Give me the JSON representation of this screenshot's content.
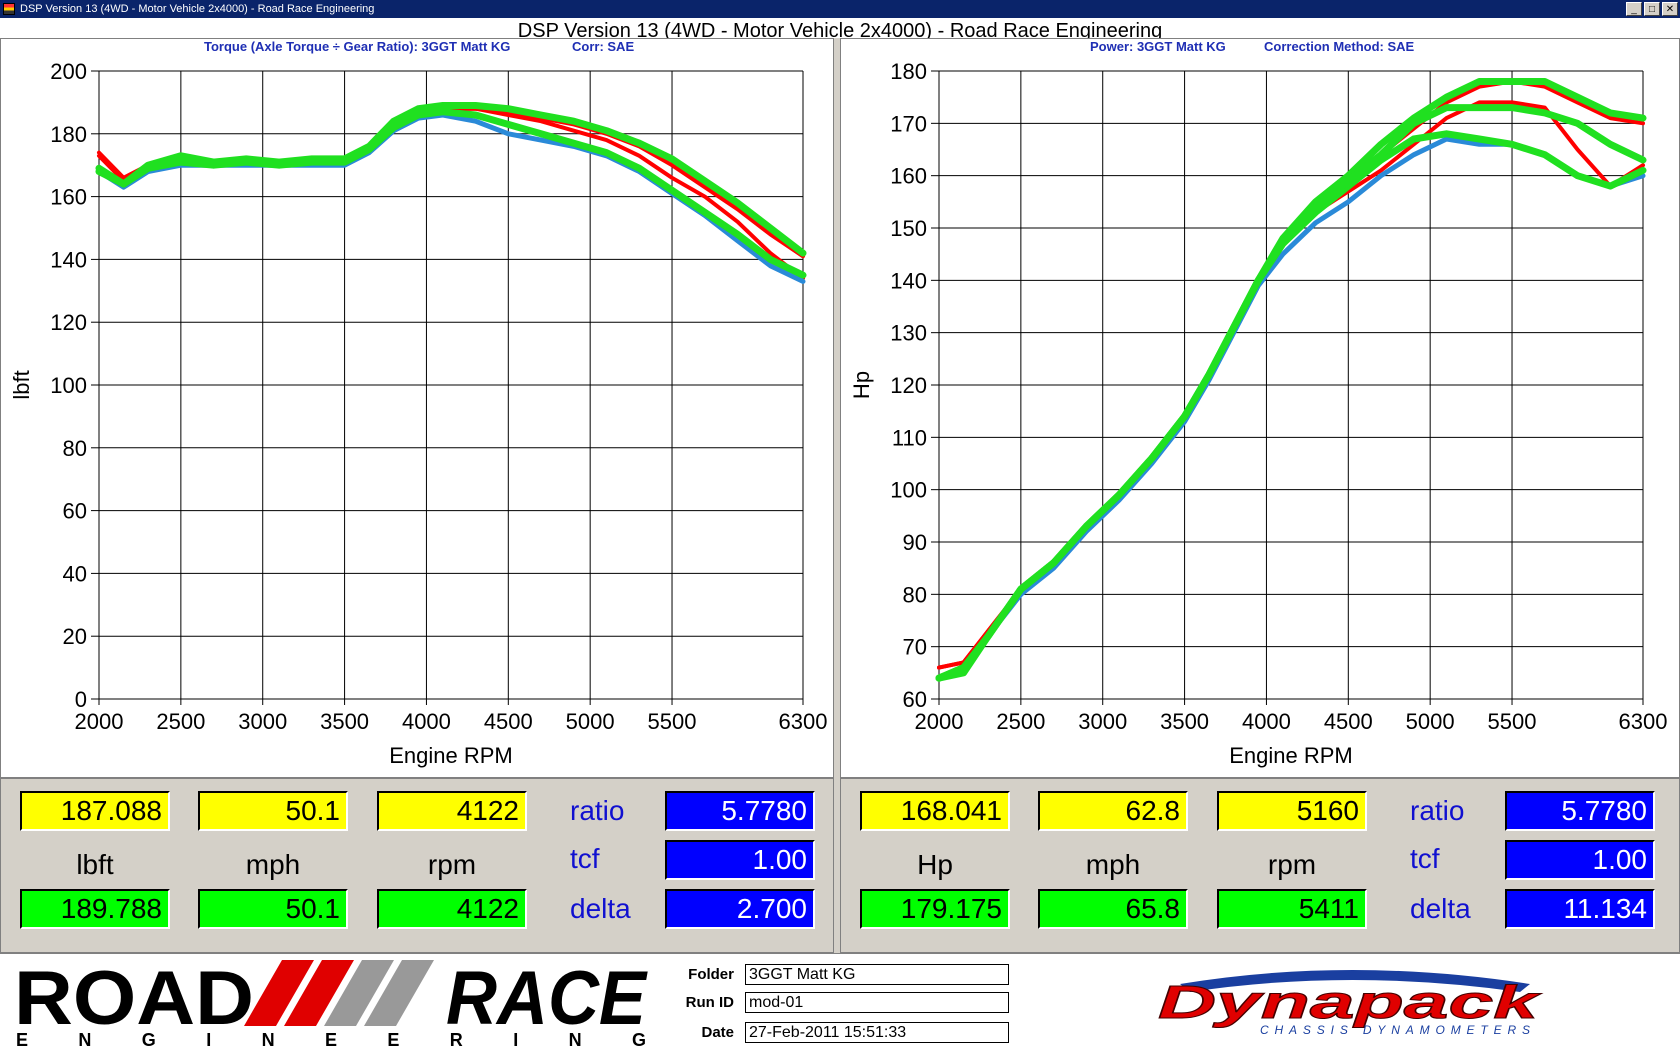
{
  "window": {
    "title": "DSP Version 13 (4WD - Motor Vehicle 2x4000) - Road Race Engineering",
    "buttons": [
      "_",
      "□",
      "✕"
    ]
  },
  "main_title": "DSP Version 13 (4WD - Motor Vehicle 2x4000) - Road Race Engineering",
  "left_chart": {
    "subtitle_a": "Torque (Axle Torque ÷ Gear Ratio): 3GGT Matt KG",
    "subtitle_b": "Corr: SAE"
  },
  "right_chart": {
    "subtitle_a": "Power: 3GGT Matt KG",
    "subtitle_b": "Correction Method: SAE"
  },
  "chart_data": [
    {
      "type": "line",
      "title": "Torque (Axle Torque ÷ Gear Ratio): 3GGT Matt KG",
      "xlabel": "Engine RPM",
      "ylabel": "lbft",
      "xlim": [
        2000,
        6300
      ],
      "ylim": [
        0,
        200
      ],
      "xticks": [
        2000,
        2500,
        3000,
        3500,
        4000,
        4500,
        5000,
        5500,
        6300
      ],
      "yticks": [
        0,
        20,
        40,
        60,
        80,
        100,
        120,
        140,
        160,
        180,
        200
      ],
      "grid": true,
      "series": [
        {
          "color": "#ff0000",
          "x": [
            2000,
            2150,
            2300,
            2500,
            2700,
            2900,
            3100,
            3300,
            3500,
            3650,
            3800,
            3950,
            4100,
            4300,
            4500,
            4700,
            4900,
            5100,
            5300,
            5500,
            5700,
            5900,
            6100,
            6300
          ],
          "y": [
            174,
            166,
            170,
            172,
            170,
            171,
            170,
            171,
            171,
            176,
            184,
            188,
            188,
            188,
            186,
            184,
            181,
            178,
            173,
            166,
            160,
            152,
            142,
            134
          ]
        },
        {
          "color": "#ff0000",
          "x": [
            2000,
            2150,
            2300,
            2500,
            2700,
            2900,
            3100,
            3300,
            3500,
            3650,
            3800,
            3950,
            4100,
            4300,
            4500,
            4700,
            4900,
            5100,
            5300,
            5500,
            5700,
            5900,
            6100,
            6300
          ],
          "y": [
            173,
            165,
            169,
            171,
            170,
            171,
            171,
            171,
            171,
            175,
            183,
            187,
            188,
            188,
            187,
            185,
            183,
            180,
            176,
            170,
            163,
            156,
            148,
            141
          ]
        },
        {
          "color": "#2a8ad8",
          "x": [
            2000,
            2150,
            2300,
            2500,
            2700,
            2900,
            3100,
            3300,
            3500,
            3650,
            3800,
            3950,
            4100,
            4300,
            4500,
            4700,
            4900,
            5100,
            5300,
            5500,
            5700,
            5900,
            6100,
            6300
          ],
          "y": [
            168,
            163,
            168,
            170,
            170,
            170,
            170,
            170,
            170,
            174,
            181,
            185,
            186,
            184,
            180,
            178,
            176,
            173,
            168,
            161,
            154,
            146,
            138,
            133
          ]
        },
        {
          "color": "#20e020",
          "x": [
            2000,
            2150,
            2300,
            2500,
            2700,
            2900,
            3100,
            3300,
            3500,
            3650,
            3800,
            3950,
            4100,
            4300,
            4500,
            4700,
            4900,
            5100,
            5300,
            5500,
            5700,
            5900,
            6100,
            6300
          ],
          "y": [
            169,
            164,
            170,
            173,
            171,
            172,
            171,
            172,
            172,
            176,
            184,
            188,
            189,
            189,
            188,
            186,
            184,
            181,
            177,
            172,
            165,
            158,
            150,
            142
          ]
        },
        {
          "color": "#20e020",
          "x": [
            2000,
            2150,
            2300,
            2500,
            2700,
            2900,
            3100,
            3300,
            3500,
            3650,
            3800,
            3950,
            4100,
            4300,
            4500,
            4700,
            4900,
            5100,
            5300,
            5500,
            5700,
            5900,
            6100,
            6300
          ],
          "y": [
            168,
            164,
            169,
            171,
            170,
            171,
            170,
            171,
            171,
            175,
            182,
            186,
            187,
            186,
            183,
            180,
            177,
            174,
            169,
            162,
            155,
            148,
            140,
            135
          ]
        }
      ]
    },
    {
      "type": "line",
      "title": "Power: 3GGT Matt KG",
      "xlabel": "Engine RPM",
      "ylabel": "Hp",
      "xlim": [
        2000,
        6300
      ],
      "ylim": [
        60,
        180
      ],
      "xticks": [
        2000,
        2500,
        3000,
        3500,
        4000,
        4500,
        5000,
        5500,
        6300
      ],
      "yticks": [
        60,
        70,
        80,
        90,
        100,
        110,
        120,
        130,
        140,
        150,
        160,
        170,
        180
      ],
      "grid": true,
      "series": [
        {
          "color": "#ff0000",
          "x": [
            2000,
            2150,
            2300,
            2500,
            2700,
            2900,
            3100,
            3300,
            3500,
            3650,
            3800,
            3950,
            4100,
            4300,
            4500,
            4700,
            4900,
            5100,
            5300,
            5500,
            5700,
            5900,
            6100,
            6300
          ],
          "y": [
            66,
            67,
            73,
            81,
            86,
            93,
            99,
            106,
            114,
            122,
            131,
            140,
            147,
            153,
            157,
            161,
            166,
            171,
            174,
            174,
            173,
            165,
            158,
            162
          ]
        },
        {
          "color": "#ff0000",
          "x": [
            2000,
            2150,
            2300,
            2500,
            2700,
            2900,
            3100,
            3300,
            3500,
            3650,
            3800,
            3950,
            4100,
            4300,
            4500,
            4700,
            4900,
            5100,
            5300,
            5500,
            5700,
            5900,
            6100,
            6300
          ],
          "y": [
            66,
            67,
            73,
            81,
            86,
            93,
            99,
            106,
            114,
            122,
            131,
            140,
            147,
            154,
            159,
            164,
            169,
            174,
            177,
            178,
            177,
            174,
            171,
            170
          ]
        },
        {
          "color": "#2a8ad8",
          "x": [
            2000,
            2150,
            2300,
            2500,
            2700,
            2900,
            3100,
            3300,
            3500,
            3650,
            3800,
            3950,
            4100,
            4300,
            4500,
            4700,
            4900,
            5100,
            5300,
            5500,
            5700,
            5900,
            6100,
            6300
          ],
          "y": [
            64,
            66,
            72,
            80,
            85,
            92,
            98,
            105,
            113,
            121,
            130,
            139,
            145,
            151,
            155,
            160,
            164,
            167,
            166,
            166,
            164,
            160,
            158,
            160
          ]
        },
        {
          "color": "#20e020",
          "x": [
            2000,
            2150,
            2300,
            2500,
            2700,
            2900,
            3100,
            3300,
            3500,
            3650,
            3800,
            3950,
            4100,
            4300,
            4500,
            4700,
            4900,
            5100,
            5300,
            5500,
            5700,
            5900,
            6100,
            6300
          ],
          "y": [
            64,
            65,
            72,
            81,
            86,
            93,
            99,
            106,
            114,
            122,
            131,
            140,
            148,
            155,
            160,
            166,
            171,
            175,
            178,
            178,
            178,
            175,
            172,
            171
          ]
        },
        {
          "color": "#20e020",
          "x": [
            2000,
            2150,
            2300,
            2500,
            2700,
            2900,
            3100,
            3300,
            3500,
            3650,
            3800,
            3950,
            4100,
            4300,
            4500,
            4700,
            4900,
            5100,
            5300,
            5500,
            5700,
            5900,
            6100,
            6300
          ],
          "y": [
            64,
            66,
            72,
            81,
            86,
            93,
            99,
            106,
            114,
            122,
            131,
            140,
            147,
            153,
            158,
            163,
            167,
            168,
            167,
            166,
            164,
            160,
            158,
            161
          ]
        },
        {
          "color": "#20e020",
          "x": [
            2000,
            2150,
            2300,
            2500,
            2700,
            2900,
            3100,
            3300,
            3500,
            3650,
            3800,
            3950,
            4100,
            4300,
            4500,
            4700,
            4900,
            5100,
            5300,
            5500,
            5700,
            5900,
            6100,
            6300
          ],
          "y": [
            64,
            66,
            72,
            81,
            86,
            93,
            99,
            106,
            114,
            122,
            131,
            140,
            147,
            154,
            159,
            164,
            170,
            173,
            173,
            173,
            172,
            170,
            166,
            163
          ]
        }
      ]
    }
  ],
  "readout_left": {
    "top": [
      "187.088",
      "50.1",
      "4122"
    ],
    "units": [
      "lbft",
      "mph",
      "rpm"
    ],
    "bottom": [
      "189.788",
      "50.1",
      "4122"
    ],
    "params": {
      "ratio_label": "ratio",
      "ratio": "5.7780",
      "tcf_label": "tcf",
      "tcf": "1.00",
      "delta_label": "delta",
      "delta": "2.700"
    }
  },
  "readout_right": {
    "top": [
      "168.041",
      "62.8",
      "5160"
    ],
    "units": [
      "Hp",
      "mph",
      "rpm"
    ],
    "bottom": [
      "179.175",
      "65.8",
      "5411"
    ],
    "params": {
      "ratio_label": "ratio",
      "ratio": "5.7780",
      "tcf_label": "tcf",
      "tcf": "1.00",
      "delta_label": "delta",
      "delta": "11.134"
    }
  },
  "footer": {
    "logo_road": "ROAD",
    "logo_race": "RACE",
    "logo_engineering": "ENGINEERING",
    "folder_label": "Folder",
    "folder": "3GGT Matt KG",
    "runid_label": "Run ID",
    "runid": "mod-01",
    "date_label": "Date",
    "date": "27-Feb-2011 15:51:33",
    "dyna_logo": "Dynapack",
    "dyna_sub": "CHASSIS DYNAMOMETERS"
  },
  "colors": {
    "yellow": "#ffff00",
    "green": "#00ff00",
    "blue": "#0000ff",
    "label_blue": "#1010d0"
  }
}
